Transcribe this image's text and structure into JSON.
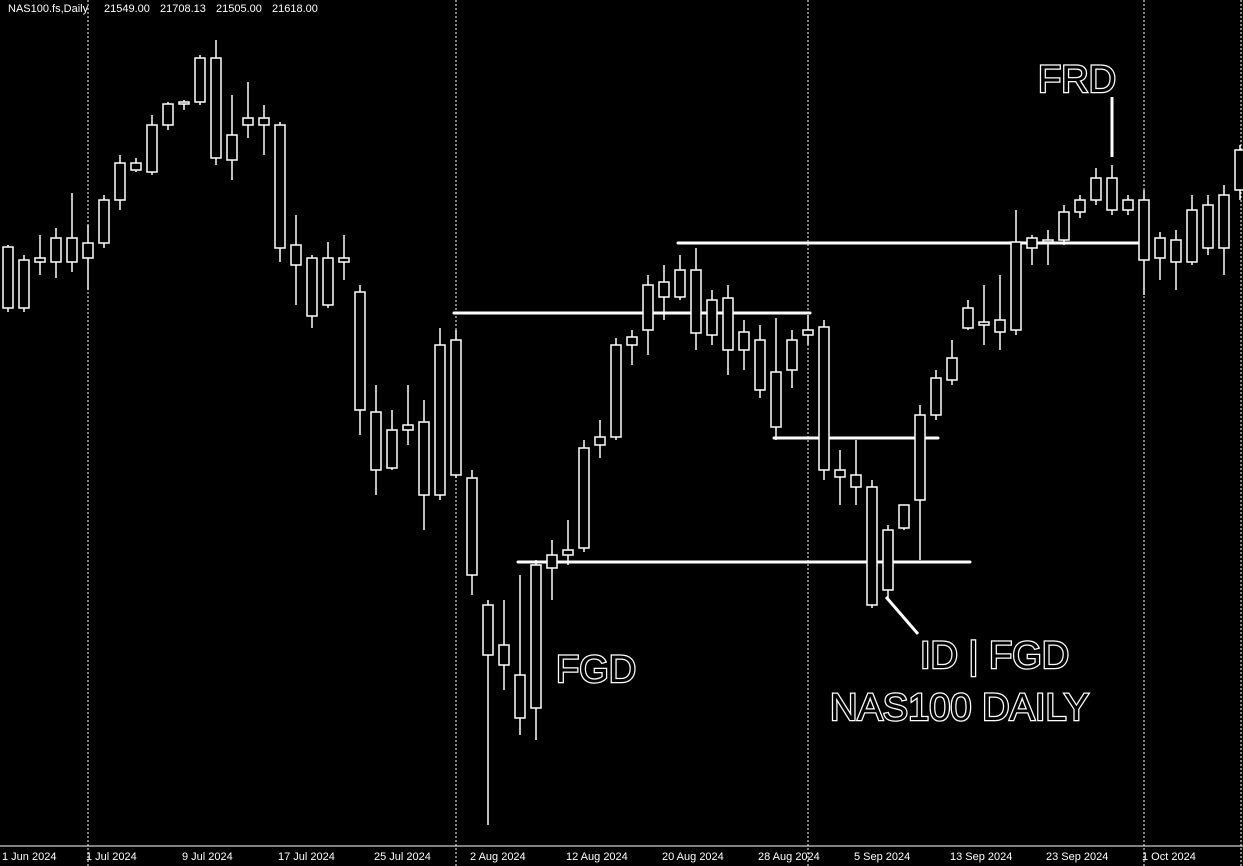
{
  "chart_data": {
    "type": "candlestick",
    "title": "NAS100.fs,Daily",
    "header_values": [
      "21549.00",
      "21708.13",
      "21505.00",
      "21618.00"
    ],
    "color": "#ffffff",
    "ylim": [
      17400,
      20800
    ],
    "categories": [
      "1 Jun 2024",
      null,
      null,
      null,
      null,
      "1 Jul 2024",
      null,
      null,
      null,
      null,
      null,
      "9 Jul 2024",
      null,
      null,
      null,
      null,
      null,
      "17 Jul 2024",
      null,
      null,
      null,
      null,
      null,
      "25 Jul 2024",
      null,
      null,
      null,
      null,
      null,
      "2 Aug 2024",
      null,
      null,
      null,
      null,
      null,
      "12 Aug 2024",
      null,
      null,
      null,
      null,
      null,
      "20 Aug 2024",
      null,
      null,
      null,
      null,
      null,
      "28 Aug 2024",
      null,
      null,
      null,
      null,
      null,
      "5 Sep 2024",
      null,
      null,
      null,
      null,
      null,
      "13 Sep 2024",
      null,
      null,
      null,
      null,
      null,
      "23 Sep 2024",
      null,
      null,
      null,
      null,
      null,
      "1 Oct 2024",
      null,
      null,
      null,
      null,
      null,
      null
    ],
    "open": [
      19568,
      19568,
      19752,
      19752,
      19752,
      19768,
      19828,
      20000,
      20120,
      20112,
      20300,
      20384,
      20392,
      20568,
      20160,
      20300,
      20328,
      20300,
      19820,
      19768,
      19768,
      19768,
      19632,
      19152,
      18928,
      19080,
      19112,
      18820,
      19440,
      18888,
      18380,
      18140,
      17928,
      17968,
      18528,
      18580,
      18608,
      19020,
      19052,
      19420,
      19480,
      19612,
      19612,
      19720,
      19460,
      19608,
      19400,
      19240,
      19312,
      19320,
      19480,
      19492,
      18920,
      18900,
      18852,
      18440,
      18688,
      18800,
      19140,
      19280,
      19488,
      19500,
      19472,
      19480,
      19808,
      19832,
      19840,
      19952,
      20000,
      20088,
      20000,
      20000,
      19768,
      19840,
      19752,
      19808,
      19808,
      20040
    ],
    "high": [
      19820,
      19780,
      19860,
      19888,
      20028,
      19900,
      20020,
      20180,
      20168,
      20340,
      20392,
      20400,
      20580,
      20640,
      20420,
      20472,
      20380,
      20312,
      19940,
      19780,
      19832,
      19860,
      19660,
      19260,
      19160,
      19260,
      19200,
      19488,
      19480,
      18920,
      18400,
      18400,
      18500,
      18560,
      18640,
      18720,
      19040,
      19120,
      19448,
      19480,
      19700,
      19740,
      19780,
      19808,
      19640,
      19660,
      19520,
      19500,
      19528,
      19480,
      19540,
      19520,
      19000,
      19040,
      18880,
      18700,
      18780,
      19180,
      19320,
      19440,
      19600,
      19660,
      19700,
      19960,
      19860,
      19880,
      19980,
      20020,
      20128,
      20140,
      20020,
      20040,
      19872,
      19880,
      20020,
      20020,
      20060,
      20220
    ],
    "low": [
      19552,
      19552,
      19700,
      19688,
      19712,
      19640,
      19808,
      19960,
      20112,
      20100,
      20280,
      20360,
      20380,
      20140,
      20080,
      20248,
      20180,
      19752,
      19580,
      19488,
      19568,
      19680,
      19060,
      18820,
      18920,
      19020,
      18680,
      18800,
      18888,
      18420,
      17500,
      18040,
      17860,
      17840,
      18400,
      18540,
      18592,
      18968,
      19040,
      19340,
      19380,
      19520,
      19600,
      19400,
      19420,
      19300,
      19320,
      19208,
      19040,
      19248,
      19420,
      18880,
      18780,
      18780,
      18368,
      18400,
      18680,
      18560,
      19120,
      19260,
      19480,
      19420,
      19400,
      19460,
      19740,
      19740,
      19820,
      19928,
      19980,
      19940,
      19940,
      19620,
      19680,
      19640,
      19740,
      19780,
      19700,
      20000
    ],
    "close": [
      19812,
      19760,
      19768,
      19848,
      19848,
      19828,
      20000,
      20148,
      20148,
      20300,
      20384,
      20392,
      20568,
      20168,
      20260,
      20328,
      20300,
      19808,
      19740,
      19536,
      19580,
      19752,
      19160,
      18920,
      19080,
      19100,
      18820,
      19420,
      18900,
      18500,
      18180,
      18220,
      18100,
      18540,
      18580,
      18600,
      19008,
      19052,
      19420,
      19452,
      19660,
      19672,
      19720,
      19468,
      19600,
      19400,
      19472,
      19440,
      19092,
      19440,
      19460,
      18920,
      18892,
      18852,
      18380,
      18680,
      18780,
      19140,
      19288,
      19368,
      19568,
      19512,
      19520,
      19832,
      19848,
      19840,
      19952,
      20000,
      20088,
      19960,
      19960,
      19760,
      19848,
      19752,
      19960,
      19980,
      20020,
      20200
    ],
    "levels": [
      19828,
      19548,
      19048,
      18552
    ],
    "annotations": [
      "FRD",
      "FGD",
      "ID | FGD",
      "NAS100 DAILY"
    ]
  }
}
